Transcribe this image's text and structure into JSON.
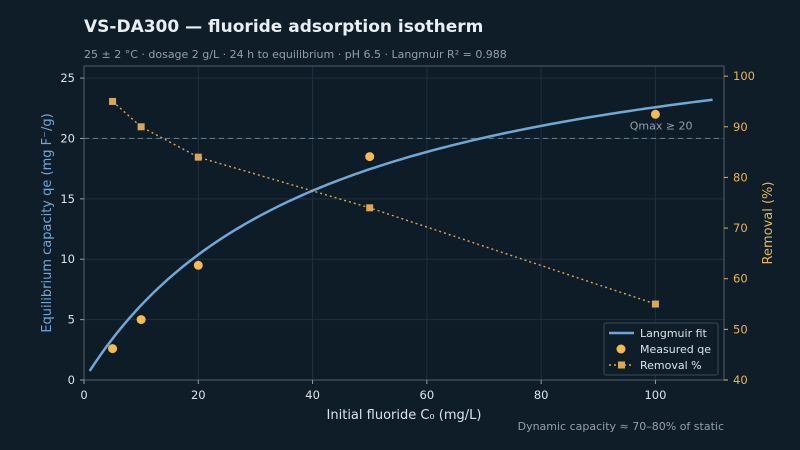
{
  "title": "VS-DA300 — fluoride adsorption isotherm",
  "subtitle": "25 ± 2 °C · dosage 2 g/L · 24 h to equilibrium · pH 6.5 · Langmuir R² = 0.988",
  "footnote": "Dynamic capacity ≈ 70–80% of static",
  "colors": {
    "background": "#0f1d29",
    "fit_line": "#6fa8d6",
    "measured": "#f5b955",
    "removal": "#d9a65a",
    "grid": "#1e3040",
    "ref_line": "#5f7584",
    "axis_left": "#6fa8d6",
    "axis_right": "#e8b355",
    "tick_text": "#dbe3ea"
  },
  "chart_data": {
    "type": "line",
    "xlabel": "Initial fluoride C₀  (mg/L)",
    "ylabel": "Equilibrium capacity qe  (mg F⁻/g)",
    "y2label": "Removal (%)",
    "xlim": [
      0,
      112
    ],
    "ylim": [
      0,
      26
    ],
    "y2lim": [
      40,
      102
    ],
    "xticks": [
      0,
      20,
      40,
      60,
      80,
      100
    ],
    "yticks": [
      0,
      5,
      10,
      15,
      20,
      25
    ],
    "y2ticks": [
      40,
      50,
      60,
      70,
      80,
      90,
      100
    ],
    "grid": true,
    "legend_position": "bottom-right",
    "langmuir_fit": {
      "name": "Langmuir fit",
      "qmax": 32,
      "KL": 0.024,
      "x_range": [
        1,
        110
      ]
    },
    "series": [
      {
        "name": "Measured qe",
        "axis": "left",
        "x": [
          5,
          10,
          20,
          50,
          100
        ],
        "y": [
          2.6,
          5.0,
          9.5,
          18.5,
          22.0
        ]
      },
      {
        "name": "Removal %",
        "axis": "right",
        "x": [
          5,
          10,
          20,
          50,
          100
        ],
        "y": [
          95,
          90,
          84,
          74,
          55
        ]
      }
    ],
    "reference_line": {
      "y": 20,
      "label": "Qmax ≥ 20"
    }
  }
}
